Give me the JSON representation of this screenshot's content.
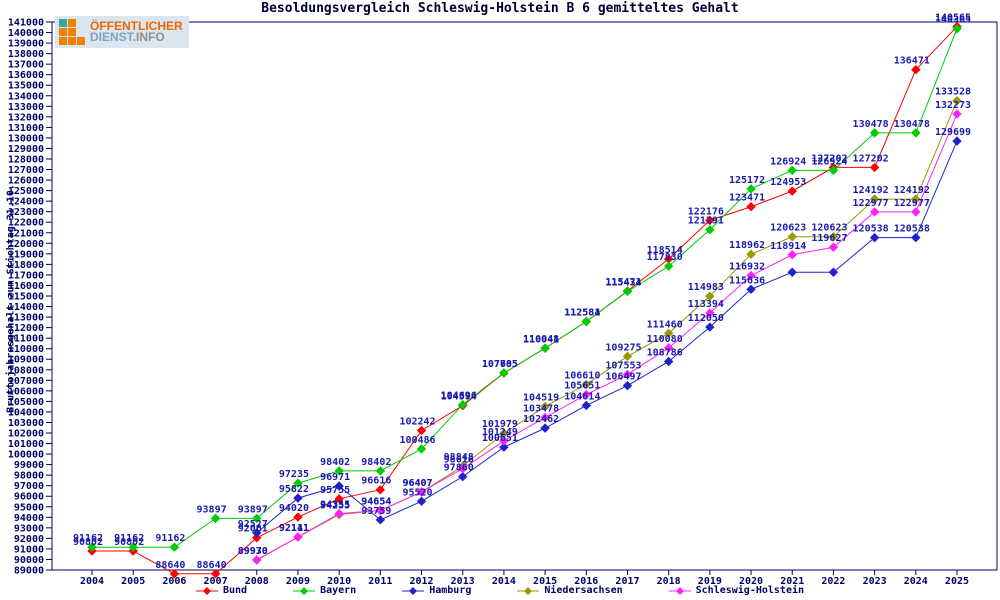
{
  "page": {
    "background": "#ffffff"
  },
  "logo": {
    "line1": "ÖFFENTLICHER",
    "line2_main": "DIENST",
    "line2_suffix": ".INFO",
    "colors": {
      "line1": "#ee6600",
      "line2_main": "#7fa3bb",
      "line2_suffix": "#8f8f8f",
      "square_orange": "#f08000",
      "square_teal": "#3aa6a0",
      "background": "#dce6f0"
    },
    "square_pattern": [
      [
        "teal",
        "orange",
        "empty"
      ],
      [
        "orange",
        "orange",
        "empty"
      ],
      [
        "orange",
        "orange",
        "orange"
      ]
    ]
  },
  "chart_data": {
    "type": "line",
    "title": "Besoldungsvergleich Schleswig-Holstein B 6 gemitteltes Gehalt",
    "ylabel": "Bruttojahresgehalt zum Stichtag 31.10.",
    "xlabel": "",
    "x": [
      2004,
      2005,
      2006,
      2007,
      2008,
      2009,
      2010,
      2011,
      2012,
      2013,
      2014,
      2015,
      2016,
      2017,
      2018,
      2019,
      2020,
      2021,
      2022,
      2023,
      2024,
      2025
    ],
    "ylim": [
      89000,
      141000
    ],
    "ytick_step": 1000,
    "grid": false,
    "legend_position": "bottom",
    "axis_color": "#000066",
    "tick_label_color": "#000066",
    "data_label_color": "#1a1aae",
    "series": [
      {
        "name": "Bund",
        "color": "#ff0000",
        "values": [
          90802,
          90802,
          88640,
          88640,
          92061,
          94020,
          95755,
          96616,
          102242,
          104594,
          107685,
          110041,
          112581,
          115471,
          118514,
          122176,
          123471,
          124953,
          127202,
          127202,
          136471,
          140565
        ],
        "unlabeled_years": []
      },
      {
        "name": "Bayern",
        "color": "#00cc00",
        "values": [
          91162,
          91162,
          91162,
          93897,
          93897,
          97235,
          98402,
          98402,
          100486,
          104696,
          107705,
          110048,
          112584,
          115434,
          117830,
          121291,
          125172,
          126924,
          126924,
          130478,
          130478,
          140365
        ],
        "unlabeled_years": []
      },
      {
        "name": "Hamburg",
        "color": "#2222cc",
        "values": [
          null,
          null,
          null,
          null,
          92527,
          95822,
          96971,
          93759,
          95520,
          97860,
          100651,
          102462,
          104614,
          106497,
          108786,
          112050,
          115636,
          117255,
          117255,
          120538,
          120538,
          129699
        ],
        "unlabeled_years": [
          2021,
          2022
        ]
      },
      {
        "name": "Niedersachsen",
        "color": "#999900",
        "values": [
          null,
          null,
          null,
          null,
          89930,
          92111,
          94255,
          94654,
          96407,
          98848,
          101979,
          104519,
          106610,
          109275,
          111460,
          114983,
          118962,
          120623,
          120623,
          124192,
          124192,
          133528
        ],
        "unlabeled_years": []
      },
      {
        "name": "Schleswig-Holstein",
        "color": "#ff22ff",
        "values": [
          null,
          null,
          null,
          null,
          89970,
          92141,
          94355,
          94654,
          96407,
          98616,
          101249,
          103478,
          105651,
          107553,
          110080,
          113394,
          116932,
          118914,
          119627,
          122977,
          122977,
          132273
        ],
        "unlabeled_years": []
      }
    ]
  }
}
